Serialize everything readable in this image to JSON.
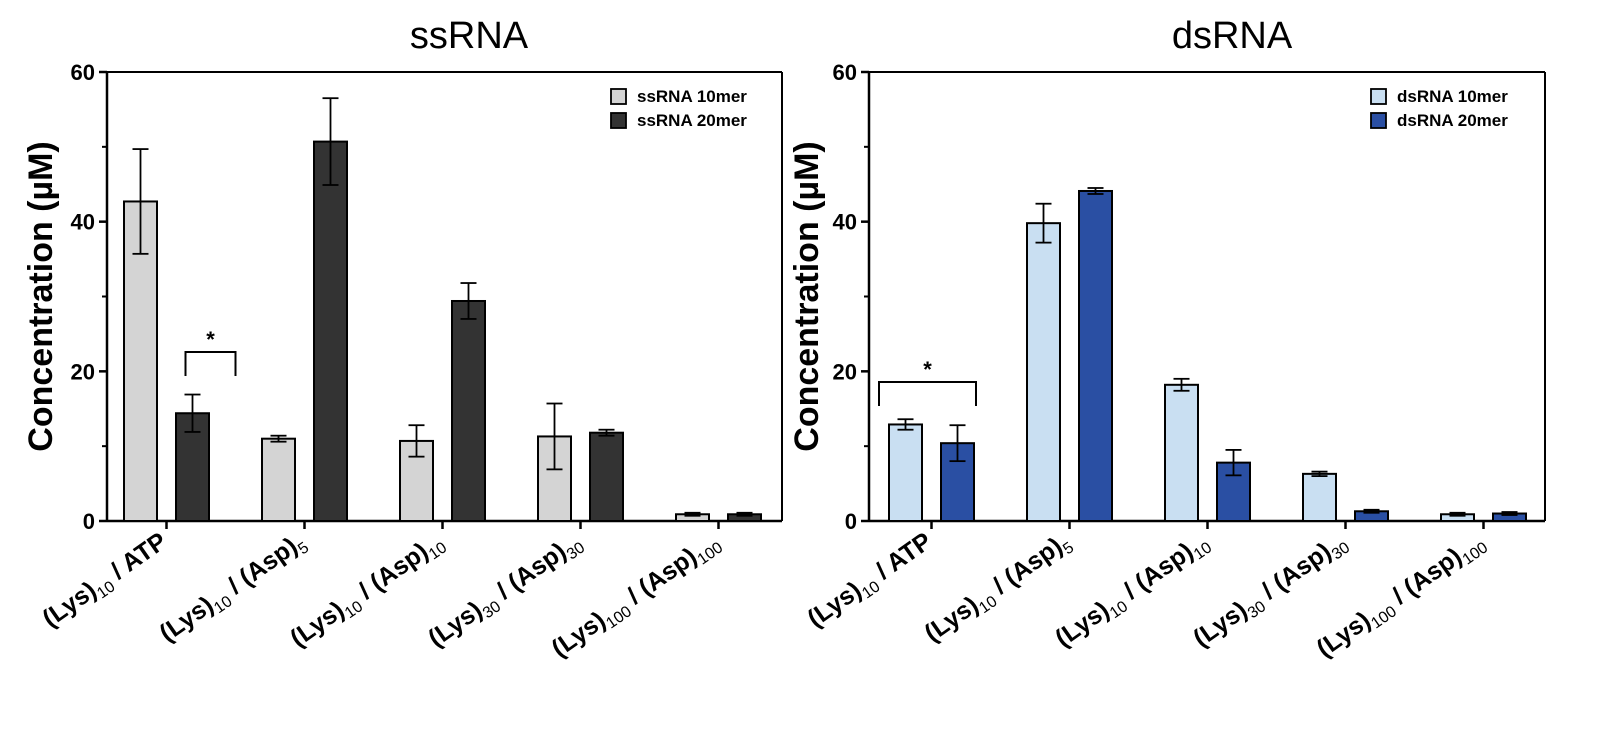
{
  "chart_data": [
    {
      "type": "bar",
      "title": "ssRNA",
      "ylabel": "Concentration (µM)",
      "xlabel": "",
      "ylim": [
        0,
        60
      ],
      "yticks": [
        "0",
        "20",
        "40",
        "60"
      ],
      "legend_position": "top-right",
      "categories": [
        {
          "parts": [
            [
              "(Lys)",
              ""
            ],
            [
              "10",
              "sub"
            ],
            [
              " / ATP",
              ""
            ]
          ]
        },
        {
          "parts": [
            [
              "(Lys)",
              ""
            ],
            [
              "10",
              "sub"
            ],
            [
              " / (Asp)",
              ""
            ],
            [
              "5",
              "sub"
            ]
          ]
        },
        {
          "parts": [
            [
              "(Lys)",
              ""
            ],
            [
              "10",
              "sub"
            ],
            [
              " / (Asp)",
              ""
            ],
            [
              "10",
              "sub"
            ]
          ]
        },
        {
          "parts": [
            [
              "(Lys)",
              ""
            ],
            [
              "30",
              "sub"
            ],
            [
              " / (Asp)",
              ""
            ],
            [
              "30",
              "sub"
            ]
          ]
        },
        {
          "parts": [
            [
              "(Lys)",
              ""
            ],
            [
              "100",
              "sub"
            ],
            [
              " / (Asp)",
              ""
            ],
            [
              "100",
              "sub"
            ]
          ]
        }
      ],
      "series": [
        {
          "name": "ssRNA 10mer",
          "color": "#d4d4d4",
          "values": [
            42.7,
            11.0,
            10.7,
            11.3,
            0.9
          ],
          "errors": [
            7.0,
            0.4,
            2.1,
            4.4,
            0.2
          ]
        },
        {
          "name": "ssRNA 20mer",
          "color": "#333333",
          "values": [
            14.4,
            50.7,
            29.4,
            11.8,
            0.9
          ],
          "errors": [
            2.5,
            5.8,
            2.4,
            0.4,
            0.2
          ]
        }
      ],
      "significance": {
        "label": "*",
        "category_index": 0
      }
    },
    {
      "type": "bar",
      "title": "dsRNA",
      "ylabel": "Concentration (µM)",
      "xlabel": "",
      "ylim": [
        0,
        60
      ],
      "yticks": [
        "0",
        "20",
        "40",
        "60"
      ],
      "legend_position": "top-right",
      "categories": [
        {
          "parts": [
            [
              "(Lys)",
              ""
            ],
            [
              "10",
              "sub"
            ],
            [
              " / ATP",
              ""
            ]
          ]
        },
        {
          "parts": [
            [
              "(Lys)",
              ""
            ],
            [
              "10",
              "sub"
            ],
            [
              " / (Asp)",
              ""
            ],
            [
              "5",
              "sub"
            ]
          ]
        },
        {
          "parts": [
            [
              "(Lys)",
              ""
            ],
            [
              "10",
              "sub"
            ],
            [
              " / (Asp)",
              ""
            ],
            [
              "10",
              "sub"
            ]
          ]
        },
        {
          "parts": [
            [
              "(Lys)",
              ""
            ],
            [
              "30",
              "sub"
            ],
            [
              " / (Asp)",
              ""
            ],
            [
              "30",
              "sub"
            ]
          ]
        },
        {
          "parts": [
            [
              "(Lys)",
              ""
            ],
            [
              "100",
              "sub"
            ],
            [
              " / (Asp)",
              ""
            ],
            [
              "100",
              "sub"
            ]
          ]
        }
      ],
      "series": [
        {
          "name": "dsRNA 10mer",
          "color": "#c9dff2",
          "values": [
            12.9,
            39.8,
            18.2,
            6.3,
            0.9
          ],
          "errors": [
            0.7,
            2.6,
            0.8,
            0.3,
            0.2
          ]
        },
        {
          "name": "dsRNA 20mer",
          "color": "#2a4fa3",
          "values": [
            10.4,
            44.1,
            7.8,
            1.3,
            1.0
          ],
          "errors": [
            2.4,
            0.4,
            1.7,
            0.2,
            0.2
          ]
        }
      ],
      "significance": {
        "label": "*",
        "category_index": 0
      }
    }
  ]
}
